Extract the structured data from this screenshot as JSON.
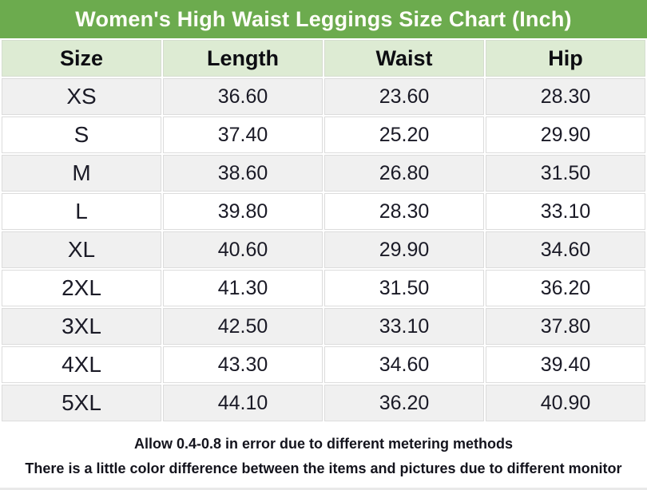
{
  "title": "Women's High Waist Leggings Size Chart (Inch)",
  "colors": {
    "title_bg": "#6cab4e",
    "title_text": "#fffef8",
    "header_bg": "#ddebd3",
    "row_alt_bg": "#f0f0f0",
    "row_bg": "#ffffff",
    "cell_border": "#dcdcdc",
    "body_text": "#1a1a26"
  },
  "chart_data": {
    "type": "table",
    "title": "Women's High Waist Leggings Size Chart (Inch)",
    "columns": [
      "Size",
      "Length",
      "Waist",
      "Hip"
    ],
    "unit": "Inch",
    "rows": [
      [
        "XS",
        "36.60",
        "23.60",
        "28.30"
      ],
      [
        "S",
        "37.40",
        "25.20",
        "29.90"
      ],
      [
        "M",
        "38.60",
        "26.80",
        "31.50"
      ],
      [
        "L",
        "39.80",
        "28.30",
        "33.10"
      ],
      [
        "XL",
        "40.60",
        "29.90",
        "34.60"
      ],
      [
        "2XL",
        "41.30",
        "31.50",
        "36.20"
      ],
      [
        "3XL",
        "42.50",
        "33.10",
        "37.80"
      ],
      [
        "4XL",
        "43.30",
        "34.60",
        "39.40"
      ],
      [
        "5XL",
        "44.10",
        "36.20",
        "40.90"
      ]
    ]
  },
  "footer": {
    "line1": "Allow 0.4-0.8 in error due to different metering methods",
    "line2": "There is a little color difference between the items and pictures due to different monitor"
  }
}
